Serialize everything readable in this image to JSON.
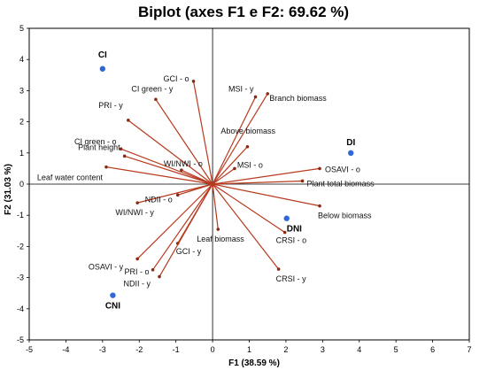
{
  "chart_data": {
    "type": "scatter",
    "title": "Biplot (axes F1 e F2: 69.62 %)",
    "xlabel": "F1 (38.59 %)",
    "ylabel": "F2 (31.03 %)",
    "xlim": [
      -5,
      7
    ],
    "ylim": [
      -5,
      5
    ],
    "x_ticks": [
      "-5",
      "-4",
      "-3",
      "-2",
      "-1",
      "0",
      "1",
      "2",
      "3",
      "4",
      "5",
      "6",
      "7"
    ],
    "y_ticks": [
      "-5",
      "-4",
      "-3",
      "-2",
      "-1",
      "0",
      "1",
      "2",
      "3",
      "4",
      "5"
    ],
    "grid": false,
    "colors": {
      "vector": "#b83a1e",
      "vector_tip": "#8b2a12",
      "observation": "#2f67d8",
      "axis_box": "#000000"
    },
    "observations": [
      {
        "label": "CI",
        "x": -3.0,
        "y": 3.7
      },
      {
        "label": "DI",
        "x": 3.77,
        "y": 1.0
      },
      {
        "label": "DNI",
        "x": 2.02,
        "y": -1.1
      },
      {
        "label": "CNI",
        "x": -2.72,
        "y": -3.57
      }
    ],
    "variables": [
      {
        "label": "GCI - o",
        "x": -0.52,
        "y": 3.3
      },
      {
        "label": "CI green - y",
        "x": -1.55,
        "y": 2.72
      },
      {
        "label": "PRI - y",
        "x": -2.3,
        "y": 2.05
      },
      {
        "label": "CI green - o",
        "x": -2.5,
        "y": 1.13
      },
      {
        "label": "Plant height",
        "x": -2.4,
        "y": 0.9
      },
      {
        "label": "Leaf water content",
        "x": -2.9,
        "y": 0.55
      },
      {
        "label": "WI/NWI - o",
        "x": -0.85,
        "y": 0.45
      },
      {
        "label": "WI/NWI - y",
        "x": -2.05,
        "y": -0.6
      },
      {
        "label": "NDII - o",
        "x": -0.95,
        "y": -0.35
      },
      {
        "label": "MSI - y",
        "x": 1.17,
        "y": 2.8
      },
      {
        "label": "Branch biomass",
        "x": 1.5,
        "y": 2.9
      },
      {
        "label": "Above biomass",
        "x": 0.95,
        "y": 1.2
      },
      {
        "label": "MSI - o",
        "x": 0.6,
        "y": 0.5
      },
      {
        "label": "OSAVI - o",
        "x": 2.92,
        "y": 0.5
      },
      {
        "label": "Plant total biomass",
        "x": 2.45,
        "y": 0.1
      },
      {
        "label": "Below biomass",
        "x": 2.92,
        "y": -0.7
      },
      {
        "label": "CRSI - o",
        "x": 1.97,
        "y": -1.55
      },
      {
        "label": "CRSI - y",
        "x": 1.8,
        "y": -2.73
      },
      {
        "label": "Leaf biomass",
        "x": 0.15,
        "y": -1.45
      },
      {
        "label": "GCI - y",
        "x": -0.95,
        "y": -1.9
      },
      {
        "label": "OSAVI - y",
        "x": -2.05,
        "y": -2.4
      },
      {
        "label": "PRI - o",
        "x": -1.63,
        "y": -2.75
      },
      {
        "label": "NDII - y",
        "x": -1.45,
        "y": -2.97
      }
    ]
  }
}
